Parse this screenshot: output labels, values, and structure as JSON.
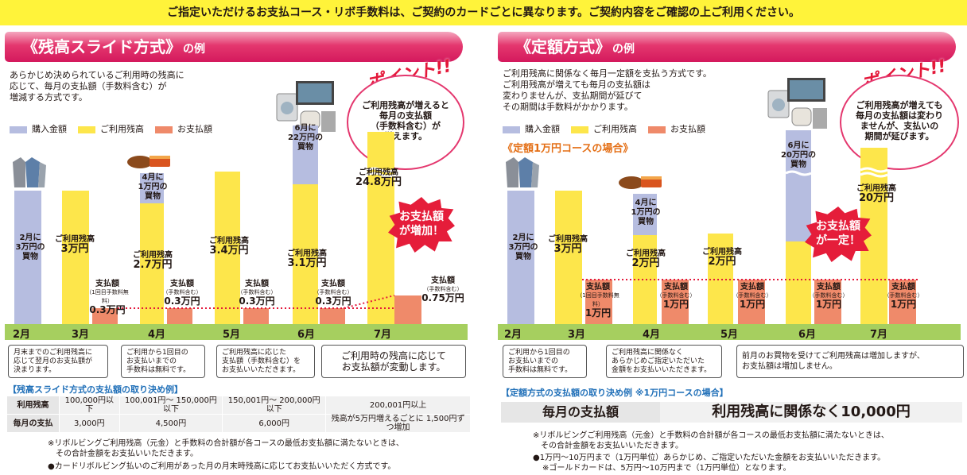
{
  "banner": "ご指定いただけるお支払コース・リボ手数料は、ご契約のカードごとに異なります。ご契約内容をご確認の上ご利用ください。",
  "legend": {
    "purchase": "購入金額",
    "balance": "ご利用残高",
    "payment": "お支払額"
  },
  "colors": {
    "purchase": "#b6bde0",
    "balance": "#fde64b",
    "payment": "#ef8a6a",
    "heading": "#e4376e",
    "band": "#a6cf5f"
  },
  "point_title": "ポイント!!",
  "left": {
    "title": "《残高スライド方式》",
    "title_suffix": "の例",
    "desc": [
      "あらかじめ決められているご利用時の残高に",
      "応じて、毎月の支払額（手数料含む）が",
      "増減する方式です。"
    ],
    "point_text": [
      "ご利用残高が増えると",
      "毎月の支払額",
      "（手数料含む）が",
      "増えます。"
    ],
    "burst": [
      "お支払額",
      "が増加！"
    ],
    "months": [
      "2月",
      "3月",
      "4月",
      "5月",
      "6月",
      "7月"
    ],
    "purchases": [
      {
        "text": [
          "2月に",
          "3万円の",
          "買物"
        ]
      },
      {
        "text": [
          "4月に",
          "1万円の",
          "買物"
        ]
      },
      {
        "text": [
          "6月に",
          "22万円の",
          "買物"
        ]
      }
    ],
    "balances": [
      {
        "label": "ご利用残高",
        "value": "3万円"
      },
      {
        "label": "ご利用残高",
        "value": "2.7万円"
      },
      {
        "label": "ご利用残高",
        "value": "3.4万円"
      },
      {
        "label": "ご利用残高",
        "value": "3.1万円"
      },
      {
        "label": "ご利用残高",
        "value": "24.8万円"
      }
    ],
    "payments": [
      {
        "label": "支払額",
        "sub": "（1回目手数料無料）",
        "value": "0.3万円"
      },
      {
        "label": "支払額",
        "sub": "（手数料含む）",
        "value": "0.3万円"
      },
      {
        "label": "支払額",
        "sub": "（手数料含む）",
        "value": "0.3万円"
      },
      {
        "label": "支払額",
        "sub": "（手数料含む）",
        "value": "0.3万円"
      },
      {
        "label": "支払額",
        "sub": "（手数料含む）",
        "value": "0.75万円"
      }
    ],
    "notes": [
      [
        "月末までのご利用残高に",
        "応じて翌月のお支払額が",
        "決まります。"
      ],
      [
        "ご利用から1回目の",
        "お支払いまでの",
        "手数料は無料です。"
      ],
      [
        "ご利用残高に応じた",
        "支払額（手数料含む）を",
        "お支払いいただきます。"
      ],
      [
        "ご利用時の残高に応じて",
        "お支払額が変動します。"
      ]
    ],
    "table_title": "【残高スライド方式の支払額の取り決め例】",
    "table": {
      "row1_head": "利用残高",
      "row1": [
        "100,000円以下",
        "100,001円〜 150,000円以下",
        "150,001円〜 200,000円以下",
        "200,001円以上"
      ],
      "row2_head": "毎月の支払",
      "row2": [
        "3,000円",
        "4,500円",
        "6,000円",
        "残高が5万円増えるごとに 1,500円ずつ増加"
      ]
    },
    "footnotes": [
      "※リボルビングご利用残高（元金）と手数料の合計額が各コースの最低お支払額に満たないときは、",
      "その合計金額をお支払いいただきます。",
      "●カードリボルビング払いのご利用があった月の月末時残高に応じてお支払いいただく方式です。"
    ]
  },
  "right": {
    "title": "《定額方式》",
    "title_suffix": "の例",
    "desc": [
      "ご利用残高に関係なく毎月一定額を支払う方式です。",
      "ご利用残高が増えても毎月の支払額は",
      "変わりませんが、支払期間が延びて",
      "その期間は手数料がかかります。"
    ],
    "course": "《定額1万円コースの場合》",
    "point_text": [
      "ご利用残高が増えても",
      "毎月の支払額は変わり",
      "ませんが、支払いの",
      "期間が延びます。"
    ],
    "burst": [
      "お支払額",
      "が一定！"
    ],
    "months": [
      "2月",
      "3月",
      "4月",
      "5月",
      "6月",
      "7月"
    ],
    "purchases": [
      {
        "text": [
          "2月に",
          "3万円の",
          "買物"
        ]
      },
      {
        "text": [
          "4月に",
          "1万円の",
          "買物"
        ]
      },
      {
        "text": [
          "6月に",
          "20万円の",
          "買物"
        ]
      }
    ],
    "balances": [
      {
        "label": "ご利用残高",
        "value": "3万円"
      },
      {
        "label": "ご利用残高",
        "value": "2万円"
      },
      {
        "label": "ご利用残高",
        "value": "2万円"
      },
      {
        "label": "ご利用残高",
        "value": "20万円"
      }
    ],
    "payments": [
      {
        "label": "支払額",
        "sub": "（1回目手数料無料）",
        "value": "1万円"
      },
      {
        "label": "支払額",
        "sub": "（手数料含む）",
        "value": "1万円"
      },
      {
        "label": "支払額",
        "sub": "（手数料含む）",
        "value": "1万円"
      },
      {
        "label": "支払額",
        "sub": "（手数料含む）",
        "value": "1万円"
      },
      {
        "label": "支払額",
        "sub": "（手数料含む）",
        "value": "1万円"
      }
    ],
    "notes": [
      [
        "ご利用から1回目の",
        "お支払いまでの",
        "手数料は無料です。"
      ],
      [
        "ご利用残高に関係なく",
        "あらかじめご指定いただいた",
        "金額をお支払いいただきます。"
      ],
      [
        "前月のお買物を受けてご利用残高は増加しますが、",
        "お支払額は増加しません。"
      ]
    ],
    "table_title": "【定額方式の支払額の取り決め例 ※1万円コースの場合】",
    "rule_head": "毎月の支払額",
    "rule_value": "利用残高に関係なく10,000円",
    "footnotes": [
      "※リボルビングご利用残高（元金）と手数料の合計額が各コースの最低お支払額に満たないときは、",
      "その合計金額をお支払いいただきます。",
      "●1万円〜10万円まで（1万円単位）あらかじめ、ご指定いただいた金額をお支払いいただきます。",
      "※ゴールドカードは、5万円〜10万円まで（1万円単位）となります。"
    ]
  }
}
